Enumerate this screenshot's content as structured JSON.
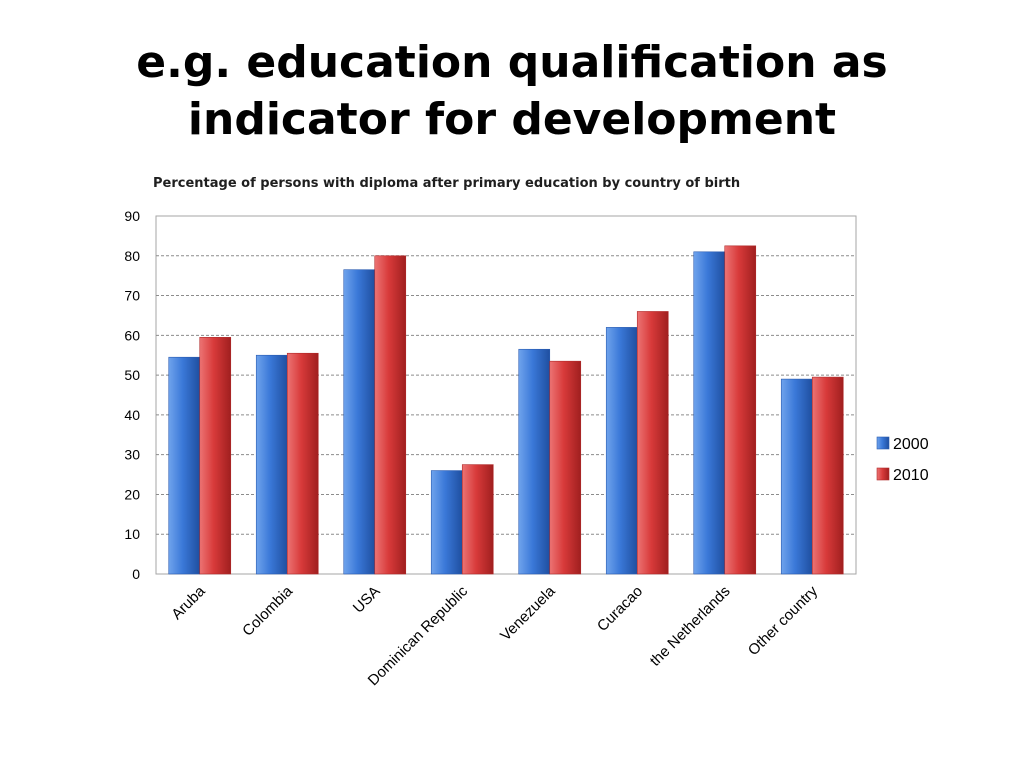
{
  "slide": {
    "title_line1": "e.g. education qualification as",
    "title_line2": "indicator for development"
  },
  "chart_data": {
    "type": "bar",
    "title": "Percentage of persons with diploma after primary education by country of birth",
    "xlabel": "",
    "ylabel": "",
    "ylim": [
      0,
      90
    ],
    "yticks": [
      0,
      10,
      20,
      30,
      40,
      50,
      60,
      70,
      80,
      90
    ],
    "grid": true,
    "legend_position": "right",
    "categories": [
      "Aruba",
      "Colombia",
      "USA",
      "Dominican Republic",
      "Venezuela",
      "Curacao",
      "the Netherlands",
      "Other country"
    ],
    "series": [
      {
        "name": "2000",
        "color": "#3a78d8",
        "values": [
          54.5,
          55,
          76.5,
          26,
          56.5,
          62,
          81,
          49
        ]
      },
      {
        "name": "2010",
        "color": "#d83a3a",
        "values": [
          59.5,
          55.5,
          80,
          27.5,
          53.5,
          66,
          82.5,
          49.5
        ]
      }
    ]
  }
}
